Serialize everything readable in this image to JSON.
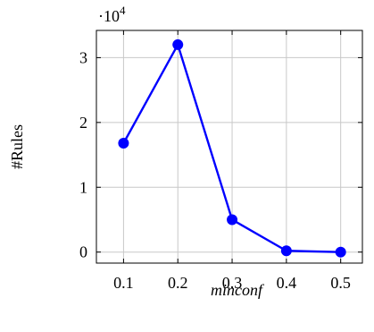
{
  "chart_data": {
    "type": "line",
    "title": "",
    "xlabel": "minconf",
    "ylabel": "#Rules",
    "scale_factor_label": "·10",
    "scale_factor_exponent": "4",
    "x": [
      0.1,
      0.2,
      0.3,
      0.4,
      0.5
    ],
    "x_tick_labels": [
      "0.1",
      "0.2",
      "0.3",
      "0.4",
      "0.5"
    ],
    "y_ticks": [
      0,
      1,
      2,
      3
    ],
    "y_tick_labels": [
      "0",
      "1",
      "2",
      "3"
    ],
    "xlim": [
      0.05,
      0.54
    ],
    "ylim": [
      -0.17,
      3.42
    ],
    "grid": true,
    "series": [
      {
        "color": "#0000ff",
        "values": [
          1.68,
          3.2,
          0.5,
          0.02,
          0.0
        ]
      }
    ]
  }
}
